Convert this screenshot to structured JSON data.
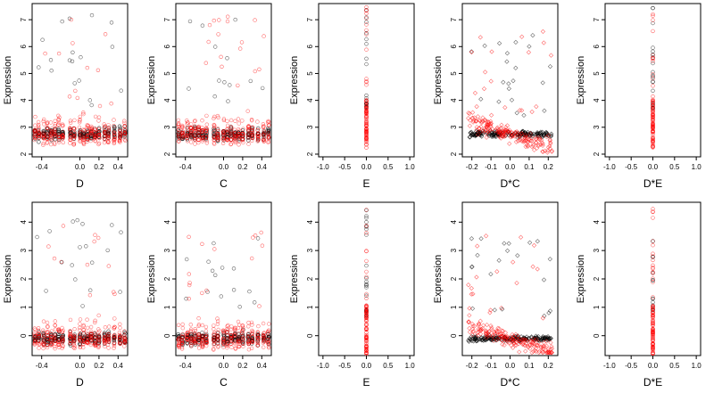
{
  "chart_data": {
    "type": "scatter",
    "series": [
      {
        "name": "",
        "color": "#000000"
      },
      {
        "name": "",
        "color": "#ff0000"
      }
    ],
    "panels": [
      {
        "row": 1,
        "xlabel": "D",
        "ylabel": "Expression",
        "kind": "continuous",
        "xlim": [
          -0.5,
          0.5
        ],
        "ylim": [
          1.9,
          7.6
        ],
        "xticks": [
          "-0.4",
          "0.0",
          "0.2",
          "0.4"
        ],
        "xtick_values": [
          -0.4,
          0.0,
          0.2,
          0.4
        ],
        "yticks": [
          "2",
          "3",
          "4",
          "5",
          "6",
          "7"
        ],
        "ytick_values": [
          2,
          3,
          4,
          5,
          6,
          7
        ],
        "marker": "circle"
      },
      {
        "row": 1,
        "xlabel": "C",
        "ylabel": "Expression",
        "kind": "continuous",
        "xlim": [
          -0.5,
          0.5
        ],
        "ylim": [
          1.9,
          7.6
        ],
        "xticks": [
          "-0.4",
          "0.0",
          "0.2",
          "0.4"
        ],
        "xtick_values": [
          -0.4,
          0.0,
          0.2,
          0.4
        ],
        "yticks": [
          "2",
          "3",
          "4",
          "5",
          "6",
          "7"
        ],
        "ytick_values": [
          2,
          3,
          4,
          5,
          6,
          7
        ],
        "marker": "circle"
      },
      {
        "row": 1,
        "xlabel": "E",
        "ylabel": "Expression",
        "kind": "point",
        "xlim": [
          -1.1,
          1.1
        ],
        "ylim": [
          1.9,
          7.6
        ],
        "xticks": [
          "-1.0",
          "-0.5",
          "0.0",
          "0.5",
          "1.0"
        ],
        "xtick_values": [
          -1.0,
          -0.5,
          0.0,
          0.5,
          1.0
        ],
        "yticks": [
          "2",
          "3",
          "4",
          "5",
          "6",
          "7"
        ],
        "ytick_values": [
          2,
          3,
          4,
          5,
          6,
          7
        ],
        "marker": "circle"
      },
      {
        "row": 1,
        "xlabel": "D*C",
        "ylabel": "Expression",
        "kind": "interaction",
        "xlim": [
          -0.25,
          0.25
        ],
        "ylim": [
          1.9,
          7.6
        ],
        "xticks": [
          "-0.2",
          "-0.1",
          "0.0",
          "0.1",
          "0.2"
        ],
        "xtick_values": [
          -0.2,
          -0.1,
          0.0,
          0.1,
          0.2
        ],
        "yticks": [
          "2",
          "3",
          "4",
          "5",
          "6",
          "7"
        ],
        "ytick_values": [
          2,
          3,
          4,
          5,
          6,
          7
        ],
        "marker": "diamond"
      },
      {
        "row": 1,
        "xlabel": "D*E",
        "ylabel": "Expression",
        "kind": "point",
        "xlim": [
          -1.1,
          1.1
        ],
        "ylim": [
          1.9,
          7.6
        ],
        "xticks": [
          "-1.0",
          "-0.5",
          "0.0",
          "0.5",
          "1.0"
        ],
        "xtick_values": [
          -1.0,
          -0.5,
          0.0,
          0.5,
          1.0
        ],
        "yticks": [
          "2",
          "3",
          "4",
          "5",
          "6",
          "7"
        ],
        "ytick_values": [
          2,
          3,
          4,
          5,
          6,
          7
        ],
        "marker": "circle"
      },
      {
        "row": 2,
        "xlabel": "D",
        "ylabel": "Expression",
        "kind": "continuous",
        "xlim": [
          -0.5,
          0.5
        ],
        "ylim": [
          -0.7,
          4.7
        ],
        "xticks": [
          "-0.4",
          "0.0",
          "0.2",
          "0.4"
        ],
        "xtick_values": [
          -0.4,
          0.0,
          0.2,
          0.4
        ],
        "yticks": [
          "0",
          "1",
          "2",
          "3",
          "4"
        ],
        "ytick_values": [
          0,
          1,
          2,
          3,
          4
        ],
        "marker": "circle"
      },
      {
        "row": 2,
        "xlabel": "C",
        "ylabel": "Expression",
        "kind": "continuous",
        "xlim": [
          -0.5,
          0.5
        ],
        "ylim": [
          -0.7,
          4.7
        ],
        "xticks": [
          "-0.4",
          "0.0",
          "0.2",
          "0.4"
        ],
        "xtick_values": [
          -0.4,
          0.0,
          0.2,
          0.4
        ],
        "yticks": [
          "0",
          "1",
          "2",
          "3",
          "4"
        ],
        "ytick_values": [
          0,
          1,
          2,
          3,
          4
        ],
        "marker": "circle"
      },
      {
        "row": 2,
        "xlabel": "E",
        "ylabel": "Expression",
        "kind": "point",
        "xlim": [
          -1.1,
          1.1
        ],
        "ylim": [
          -0.7,
          4.7
        ],
        "xticks": [
          "-1.0",
          "-0.5",
          "0.0",
          "0.5",
          "1.0"
        ],
        "xtick_values": [
          -1.0,
          -0.5,
          0.0,
          0.5,
          1.0
        ],
        "yticks": [
          "0",
          "1",
          "2",
          "3",
          "4"
        ],
        "ytick_values": [
          0,
          1,
          2,
          3,
          4
        ],
        "marker": "circle"
      },
      {
        "row": 2,
        "xlabel": "D*C",
        "ylabel": "Expression",
        "kind": "interaction",
        "xlim": [
          -0.25,
          0.25
        ],
        "ylim": [
          -0.7,
          4.7
        ],
        "xticks": [
          "-0.2",
          "-0.1",
          "0.0",
          "0.1",
          "0.2"
        ],
        "xtick_values": [
          -0.2,
          -0.1,
          0.0,
          0.1,
          0.2
        ],
        "yticks": [
          "0",
          "1",
          "2",
          "3",
          "4"
        ],
        "ytick_values": [
          0,
          1,
          2,
          3,
          4
        ],
        "marker": "diamond"
      },
      {
        "row": 2,
        "xlabel": "D*E",
        "ylabel": "Expression",
        "kind": "point",
        "xlim": [
          -1.1,
          1.1
        ],
        "ylim": [
          -0.7,
          4.7
        ],
        "xticks": [
          "-1.0",
          "-0.5",
          "0.0",
          "0.5",
          "1.0"
        ],
        "xtick_values": [
          -1.0,
          -0.5,
          0.0,
          0.5,
          1.0
        ],
        "yticks": [
          "0",
          "1",
          "2",
          "3",
          "4"
        ],
        "ytick_values": [
          0,
          1,
          2,
          3,
          4
        ],
        "marker": "circle"
      }
    ],
    "data_bands": [
      {
        "row": 1,
        "baseline": 2.75,
        "spread_min": 2.2,
        "outlier_max": 7.5
      },
      {
        "row": 2,
        "baseline": -0.1,
        "spread_min": -0.65,
        "outlier_max": 4.5
      }
    ],
    "grid": false,
    "legend": "none"
  }
}
